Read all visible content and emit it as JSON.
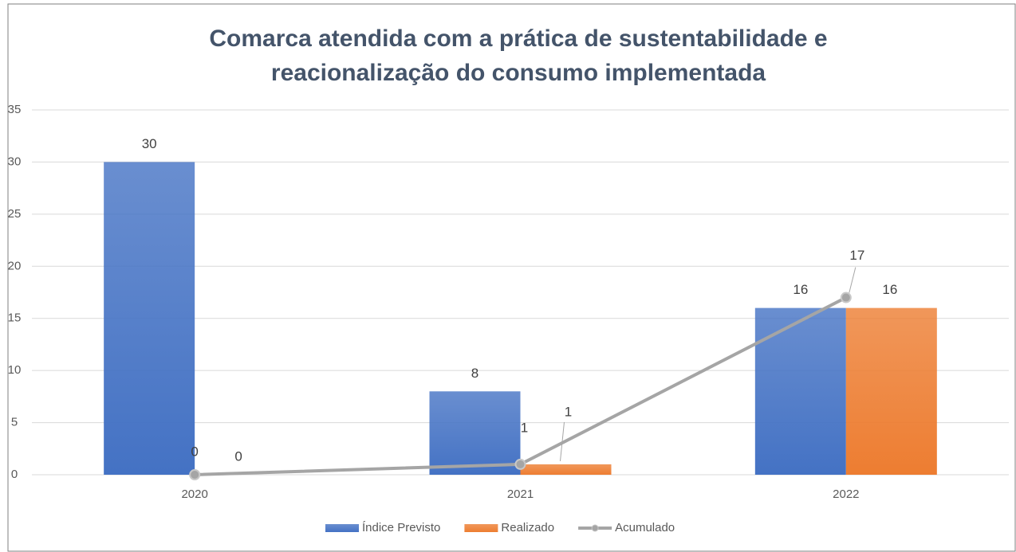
{
  "chart_data": {
    "type": "bar",
    "title": [
      "Comarca atendida com a prática de sustentabilidade e",
      "reacionalização do consumo implementada"
    ],
    "categories": [
      "2020",
      "2021",
      "2022"
    ],
    "series": [
      {
        "name": "Índice Previsto",
        "color": "#4472c4",
        "values": [
          30,
          8,
          16
        ]
      },
      {
        "name": "Realizado",
        "color": "#ed7d31",
        "values": [
          0,
          1,
          16
        ]
      },
      {
        "name": "Acumulado",
        "color": "#a5a5a5",
        "type": "line",
        "values": [
          0,
          1,
          17
        ]
      }
    ],
    "ylim": [
      0,
      35
    ],
    "yticks": [
      0,
      5,
      10,
      15,
      20,
      25,
      30,
      35
    ],
    "grid": true,
    "legend": "bottom"
  }
}
